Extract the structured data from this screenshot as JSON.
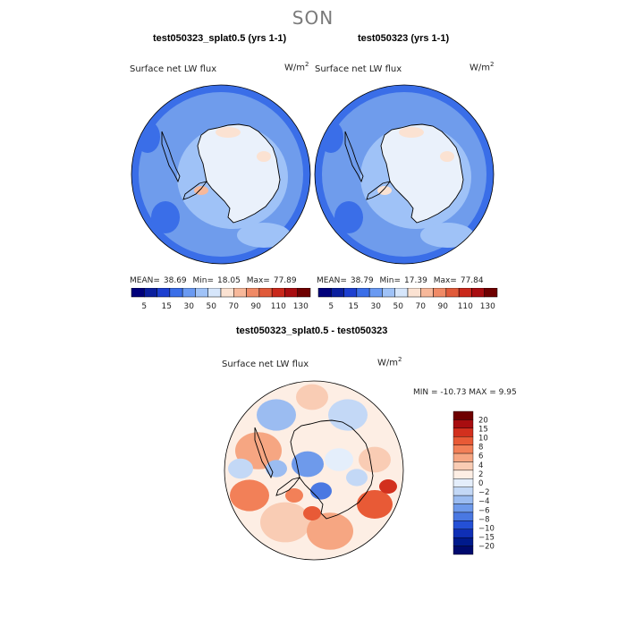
{
  "season": "SON",
  "colors": {
    "abs_scale": [
      "#00007a",
      "#0b1f9e",
      "#1c3fd0",
      "#3a6ee8",
      "#6a9af2",
      "#9fc2f7",
      "#d6e6fb",
      "#fbe2d2",
      "#f7b89a",
      "#f08a66",
      "#e05a3a",
      "#c9281b",
      "#a80d10",
      "#6e0000"
    ],
    "diff_scale": [
      "#6e0000",
      "#a80d10",
      "#d2301e",
      "#e85a36",
      "#f28058",
      "#f6a682",
      "#f9ccb4",
      "#fdeee4",
      "#e4eefb",
      "#c3d8f6",
      "#9bbcf1",
      "#6e9aeb",
      "#4a78e2",
      "#2450d6",
      "#0f2fb6",
      "#001a8c",
      "#000a6e"
    ],
    "land": "#eaf1fb",
    "ocean": "#6f9cec"
  },
  "chart_data": [
    {
      "type": "heatmap",
      "title": "test050323_splat0.5 (yrs 1-1)",
      "variable": "Surface net LW flux",
      "units": "W/m",
      "units_exp": "2",
      "mean_label": "MEAN=",
      "mean": "38.69",
      "min_label": "Min=",
      "min": "18.05",
      "max_label": "Max=",
      "max": "77.89",
      "colorbar_ticks": [
        "5",
        "15",
        "30",
        "50",
        "70",
        "90",
        "110",
        "130"
      ]
    },
    {
      "type": "heatmap",
      "title": "test050323 (yrs 1-1)",
      "variable": "Surface net LW flux",
      "units": "W/m",
      "units_exp": "2",
      "mean_label": "MEAN=",
      "mean": "38.79",
      "min_label": "Min=",
      "min": "17.39",
      "max_label": "Max=",
      "max": "77.84",
      "colorbar_ticks": [
        "5",
        "15",
        "30",
        "50",
        "70",
        "90",
        "110",
        "130"
      ]
    },
    {
      "type": "heatmap",
      "title": "test050323_splat0.5 - test050323",
      "variable": "Surface net LW flux",
      "units": "W/m",
      "units_exp": "2",
      "minmax_label": "MIN = -10.73 MAX =    9.95",
      "colorbar_ticks": [
        "20",
        "15",
        "10",
        "8",
        "6",
        "4",
        "2",
        "0",
        "−2",
        "−4",
        "−6",
        "−8",
        "−10",
        "−15",
        "−20"
      ]
    }
  ]
}
